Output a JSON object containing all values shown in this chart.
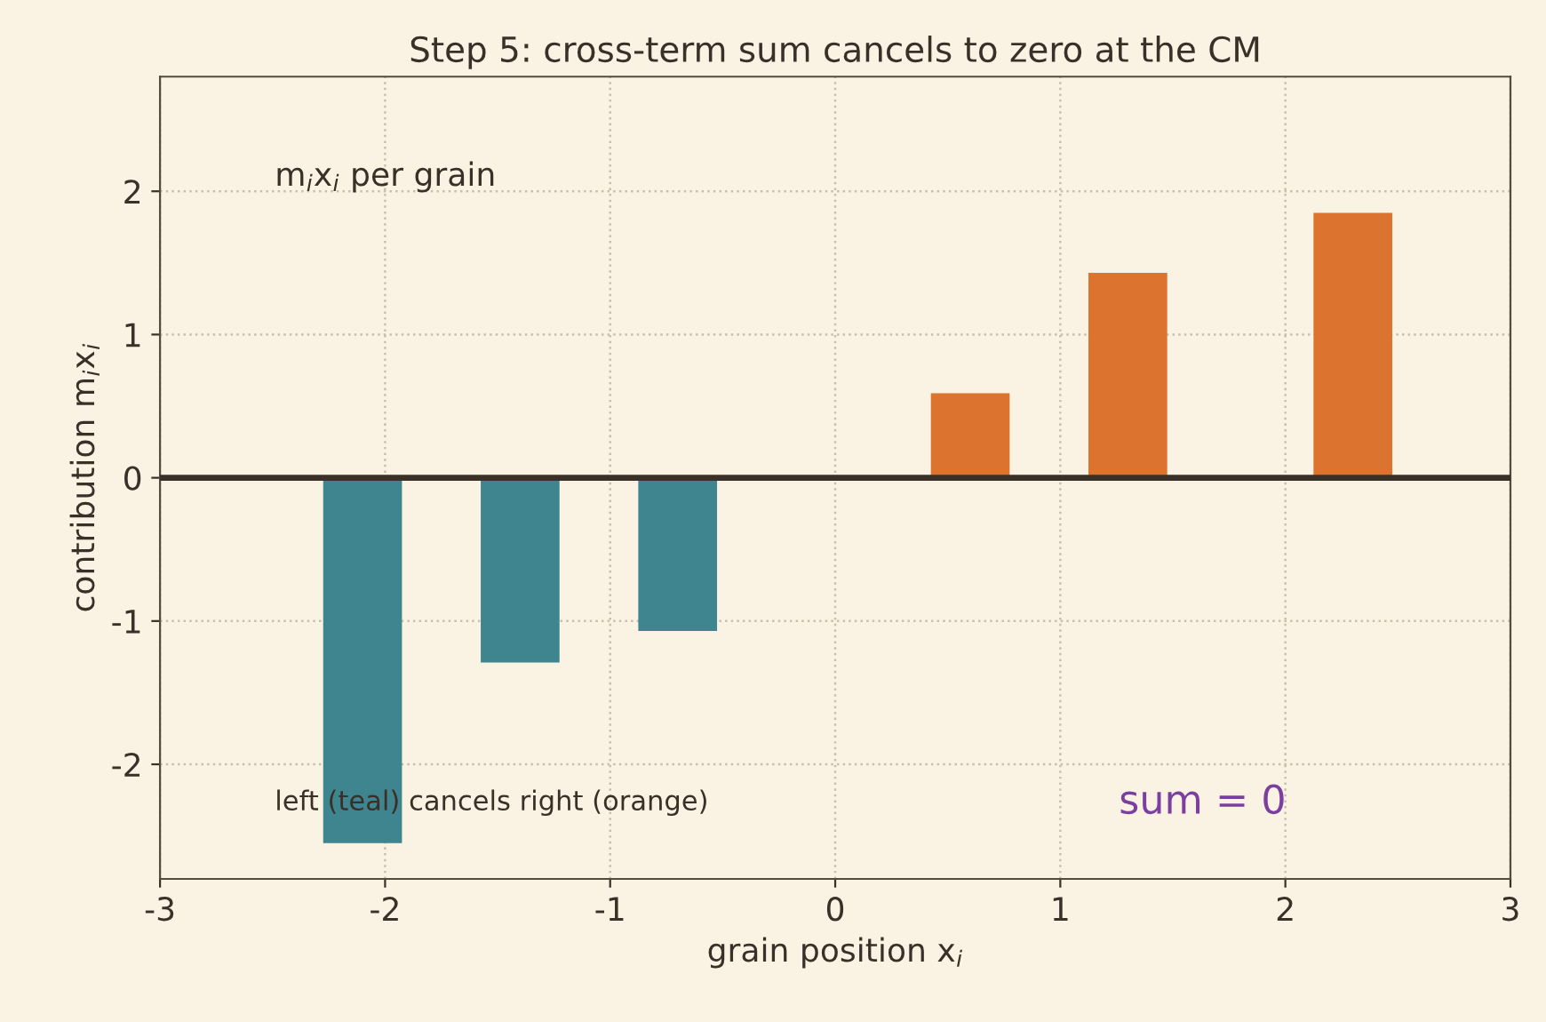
{
  "chart_data": {
    "type": "bar",
    "title": "Step 5: cross-term sum cancels to zero at the CM",
    "xlabel": "grain position x$_{i}$",
    "ylabel": "contribution m$_{i}$x$_{i}$",
    "x": [
      -2.1,
      -1.4,
      -0.7,
      0.6,
      1.3,
      2.3
    ],
    "values": [
      -2.55,
      -1.29,
      -1.07,
      0.59,
      1.43,
      1.85
    ],
    "colors": [
      "#3f8590",
      "#3f8590",
      "#3f8590",
      "#dc7430",
      "#dc7430",
      "#dc7430"
    ],
    "xlim": [
      -3,
      3
    ],
    "xticks": [
      -3,
      -2,
      -1,
      0,
      1,
      2,
      3
    ],
    "ylim": [
      -2.8,
      2.8
    ],
    "yticks": [
      -2,
      -1,
      0,
      1,
      2
    ],
    "ref_lines": [
      {
        "axis": "y",
        "value": 0,
        "color": "#3a3028"
      }
    ],
    "annotations": [
      "m$_{i}$x$_{i}$ per grain",
      "left (teal) cancels right (orange)",
      "sum = 0"
    ],
    "grid": true
  }
}
